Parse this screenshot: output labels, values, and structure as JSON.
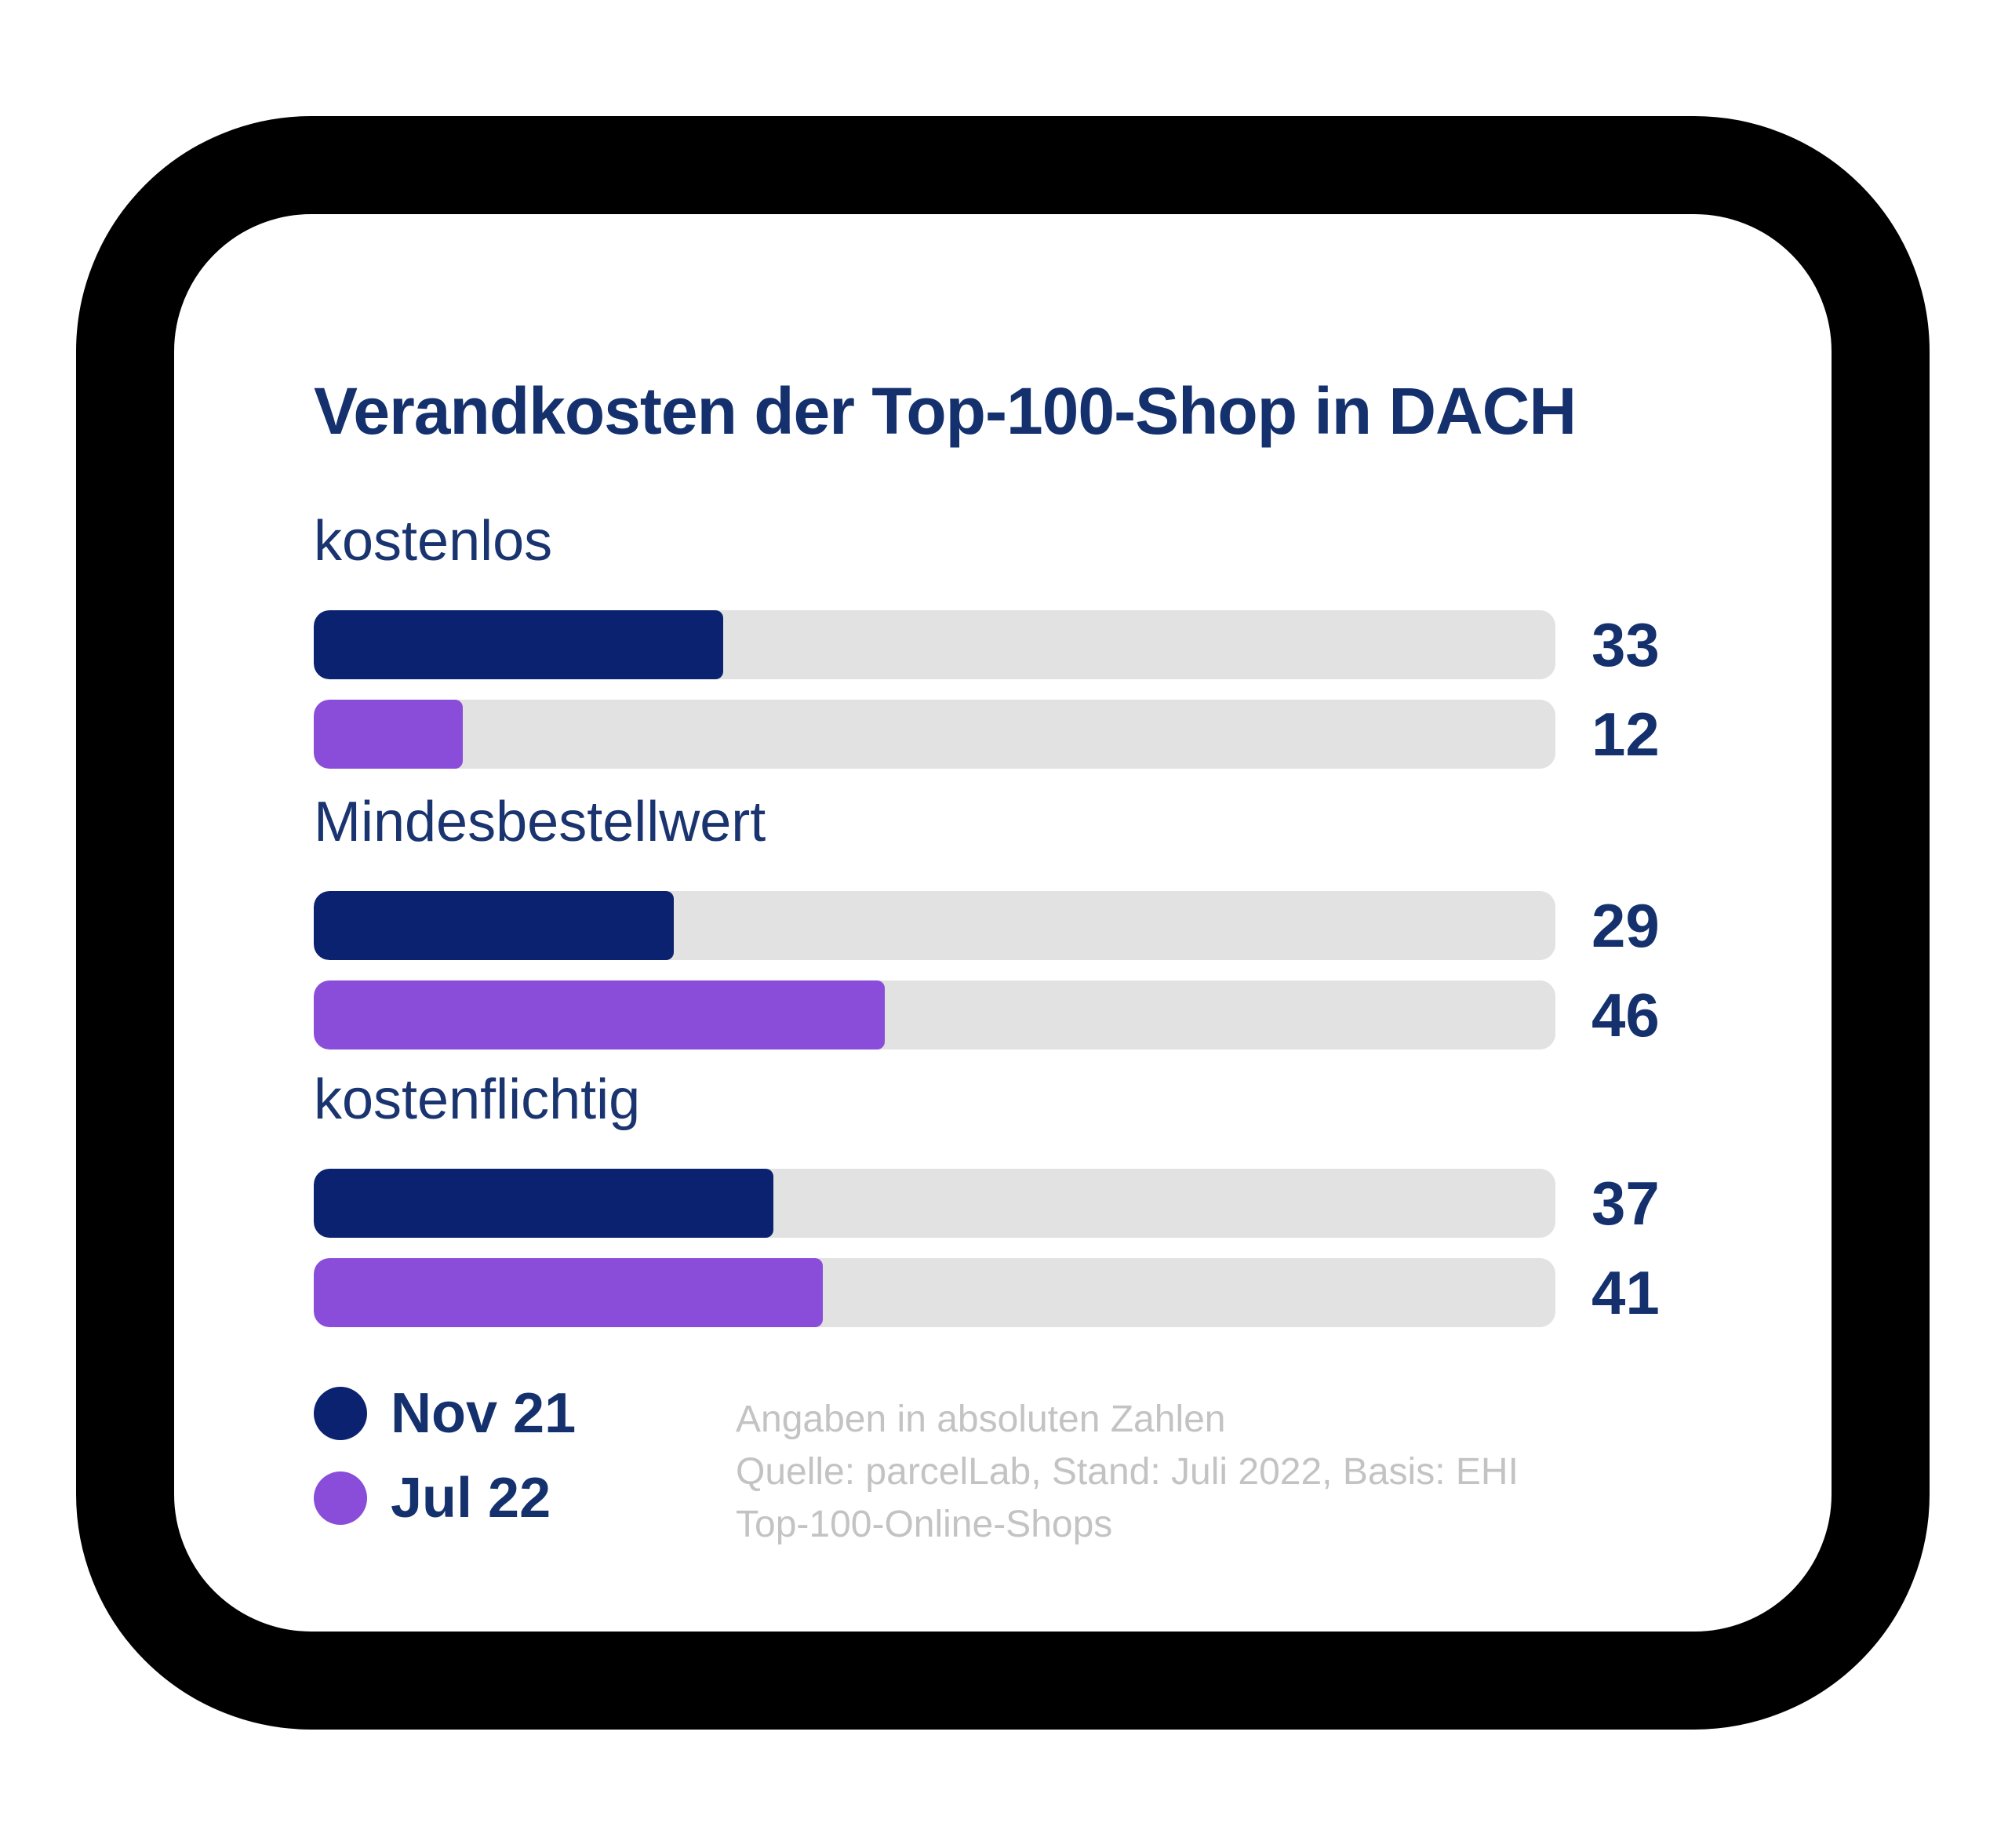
{
  "title": "Verandkosten der Top-100-Shop in DACH",
  "chart_data": {
    "type": "bar",
    "orientation": "horizontal",
    "title": "Verandkosten der Top-100-Shop in DACH",
    "categories": [
      "kostenlos",
      "Mindesbestellwert",
      "kostenflichtig"
    ],
    "series": [
      {
        "name": "Nov 21",
        "color": "#0a2270",
        "values": [
          33,
          29,
          37
        ]
      },
      {
        "name": "Jul 22",
        "color": "#8a4dd9",
        "values": [
          12,
          46,
          41
        ]
      }
    ],
    "xlim": [
      0,
      100
    ],
    "grid": false,
    "track_color": "#e2e2e2",
    "value_labels": "right",
    "legend_position": "bottom-left",
    "units_note": "Angaben in absoluten Zahlen"
  },
  "footnote": {
    "lines": [
      "Angaben in absoluten Zahlen",
      "Quelle: parcelLab, Stand: Juli 2022, Basis: EHI",
      "Top-100-Online-Shops"
    ]
  },
  "colors": {
    "frame": "#000000",
    "card": "#ffffff",
    "text_navy": "#14316e",
    "bar_navy": "#0a2270",
    "bar_purple": "#8a4dd9",
    "track_gray": "#e2e2e2",
    "footnote_gray": "#c3c3c3"
  }
}
